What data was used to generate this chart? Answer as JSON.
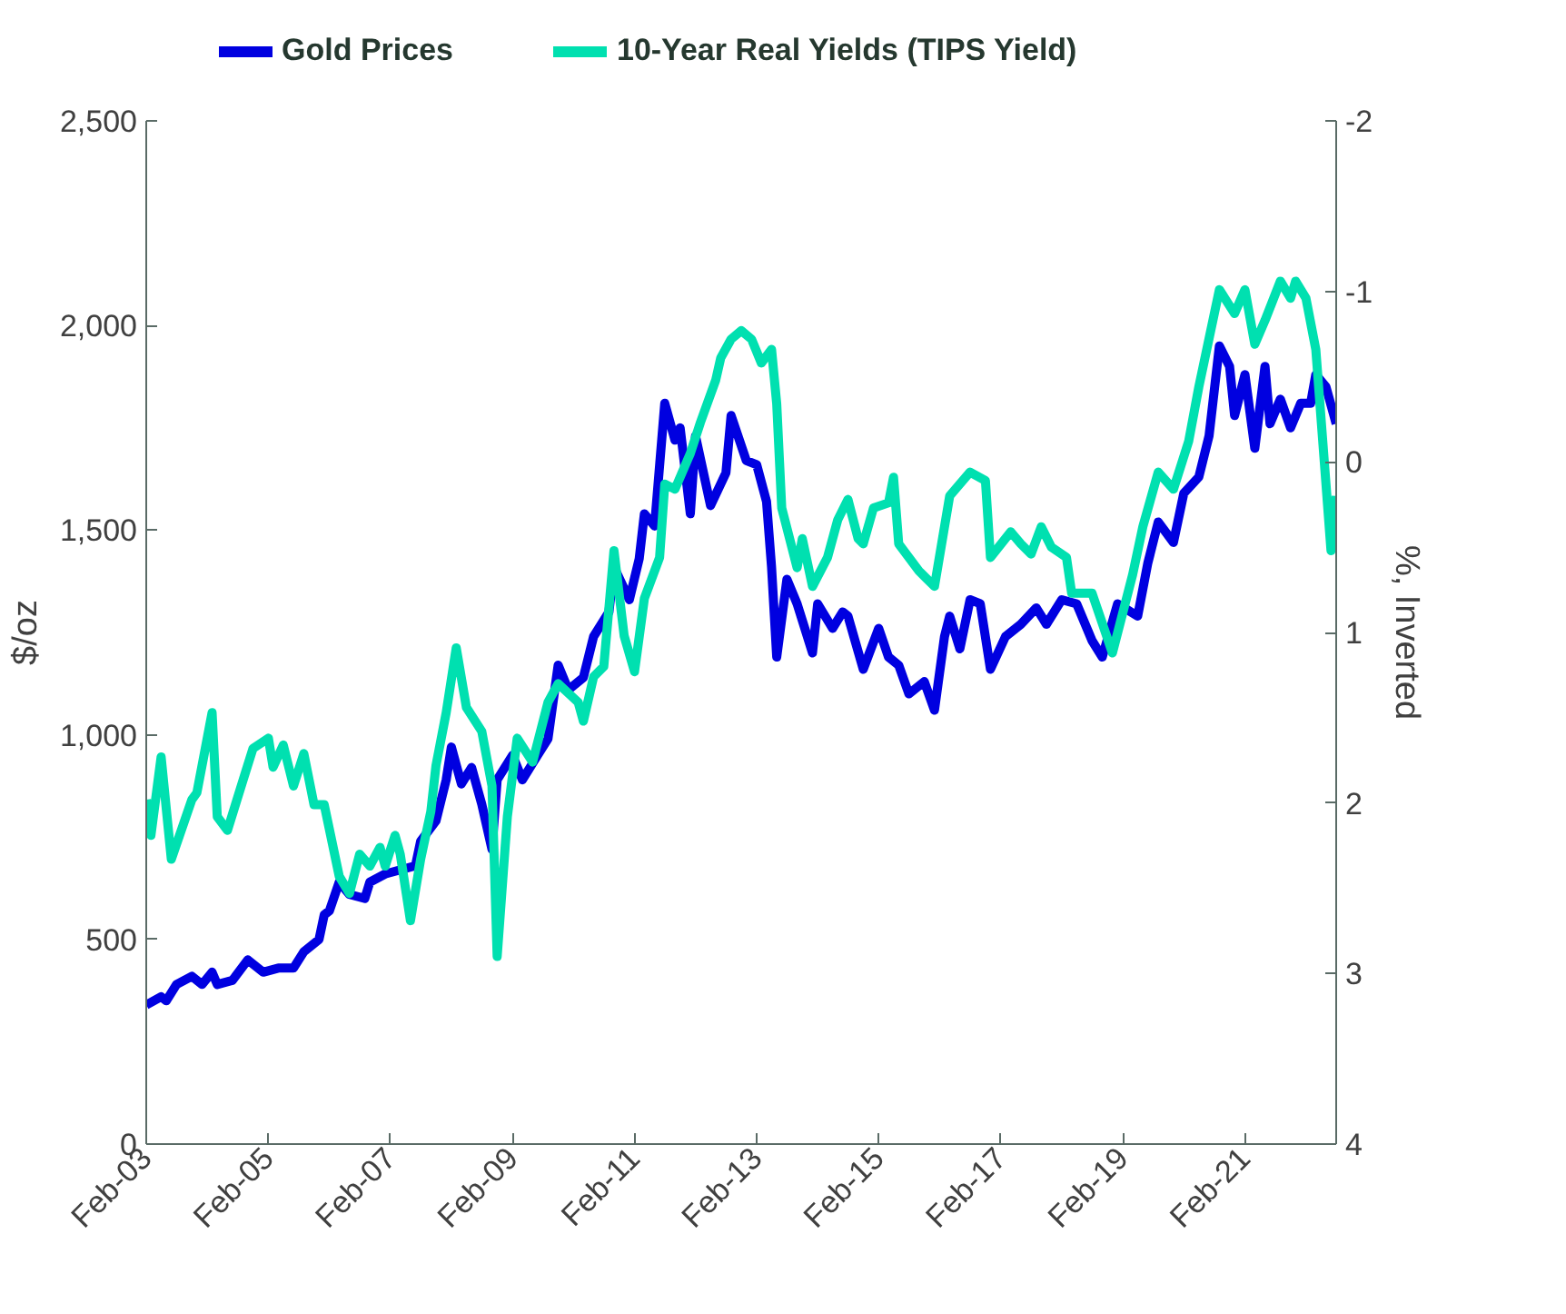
{
  "chart_data": {
    "type": "line",
    "ylabel": "$/oz",
    "y2label": "%, Inverted",
    "legend": "top",
    "grid": false,
    "xlim": [
      "2003-02",
      "2022-08"
    ],
    "xticks": [
      {
        "value": "2003-02",
        "label": "Feb-03"
      },
      {
        "value": "2005-02",
        "label": "Feb-05"
      },
      {
        "value": "2007-02",
        "label": "Feb-07"
      },
      {
        "value": "2009-02",
        "label": "Feb-09"
      },
      {
        "value": "2011-02",
        "label": "Feb-11"
      },
      {
        "value": "2013-02",
        "label": "Feb-13"
      },
      {
        "value": "2015-02",
        "label": "Feb-15"
      },
      {
        "value": "2017-02",
        "label": "Feb-17"
      },
      {
        "value": "2019-02",
        "label": "Feb-19"
      },
      {
        "value": "2021-02",
        "label": "Feb-21"
      }
    ],
    "ylim": [
      0,
      2500
    ],
    "yticks": [
      0,
      {
        "value": 500,
        "label": "500"
      },
      {
        "value": 1000,
        "label": "1,000"
      },
      {
        "value": 1500,
        "label": "1,500"
      },
      {
        "value": 2000,
        "label": "2,000"
      },
      {
        "value": 2500,
        "label": "2,500"
      }
    ],
    "y2lim": [
      4,
      -2
    ],
    "y2ticks": [
      4,
      3,
      2,
      1,
      0,
      -1,
      -2
    ],
    "series": [
      {
        "name": "Gold Prices",
        "color": "#0000e0",
        "x": [
          "2003-02",
          "2003-05",
          "2003-06",
          "2003-08",
          "2003-11",
          "2004-01",
          "2004-03",
          "2004-04",
          "2004-07",
          "2004-10",
          "2005-01",
          "2005-04",
          "2005-07",
          "2005-09",
          "2005-12",
          "2006-01",
          "2006-02",
          "2006-04",
          "2006-06",
          "2006-09",
          "2006-10",
          "2007-01",
          "2007-04",
          "2007-07",
          "2007-08",
          "2007-11",
          "2008-01",
          "2008-02",
          "2008-04",
          "2008-06",
          "2008-08",
          "2008-10",
          "2008-11",
          "2009-02",
          "2009-04",
          "2009-07",
          "2009-09",
          "2009-11",
          "2010-01",
          "2010-04",
          "2010-06",
          "2010-09",
          "2010-10",
          "2011-01",
          "2011-03",
          "2011-04",
          "2011-06",
          "2011-08",
          "2011-10",
          "2011-11",
          "2012-01",
          "2012-02",
          "2012-05",
          "2012-08",
          "2012-09",
          "2012-12",
          "2013-02",
          "2013-04",
          "2013-05",
          "2013-06",
          "2013-08",
          "2013-10",
          "2014-01",
          "2014-02",
          "2014-05",
          "2014-07",
          "2014-08",
          "2014-11",
          "2015-02",
          "2015-04",
          "2015-06",
          "2015-08",
          "2015-11",
          "2016-01",
          "2016-03",
          "2016-04",
          "2016-06",
          "2016-08",
          "2016-10",
          "2016-12",
          "2017-03",
          "2017-06",
          "2017-09",
          "2017-11",
          "2018-02",
          "2018-05",
          "2018-08",
          "2018-10",
          "2019-01",
          "2019-05",
          "2019-07",
          "2019-09",
          "2019-12",
          "2020-02",
          "2020-05",
          "2020-07",
          "2020-09",
          "2020-11",
          "2020-12",
          "2021-02",
          "2021-04",
          "2021-06",
          "2021-07",
          "2021-09",
          "2021-11",
          "2022-01",
          "2022-03",
          "2022-04",
          "2022-06",
          "2022-08"
        ],
        "values": [
          340,
          360,
          350,
          390,
          410,
          390,
          420,
          390,
          400,
          450,
          420,
          430,
          430,
          470,
          500,
          560,
          570,
          640,
          610,
          600,
          640,
          660,
          670,
          680,
          740,
          790,
          890,
          970,
          880,
          920,
          830,
          720,
          890,
          950,
          890,
          950,
          990,
          1170,
          1110,
          1140,
          1240,
          1300,
          1410,
          1330,
          1430,
          1540,
          1510,
          1810,
          1720,
          1750,
          1540,
          1730,
          1560,
          1640,
          1780,
          1670,
          1660,
          1570,
          1410,
          1190,
          1380,
          1320,
          1200,
          1320,
          1260,
          1300,
          1290,
          1160,
          1260,
          1190,
          1170,
          1100,
          1130,
          1060,
          1240,
          1290,
          1210,
          1330,
          1320,
          1160,
          1240,
          1270,
          1310,
          1270,
          1330,
          1320,
          1230,
          1190,
          1320,
          1290,
          1420,
          1520,
          1470,
          1590,
          1630,
          1730,
          1950,
          1900,
          1780,
          1880,
          1700,
          1900,
          1760,
          1820,
          1750,
          1810,
          1810,
          1880,
          1850,
          1760
        ]
      },
      {
        "name": "10-Year Real Yields (TIPS Yield)",
        "color": "#00e0b0",
        "axis": "y2",
        "x": [
          "2003-02",
          "2003-03",
          "2003-05",
          "2003-07",
          "2003-11",
          "2003-12",
          "2004-03",
          "2004-04",
          "2004-06",
          "2004-09",
          "2004-11",
          "2005-02",
          "2005-03",
          "2005-05",
          "2005-07",
          "2005-09",
          "2005-11",
          "2006-01",
          "2006-04",
          "2006-06",
          "2006-08",
          "2006-10",
          "2006-12",
          "2007-01",
          "2007-03",
          "2007-04",
          "2007-06",
          "2007-08",
          "2007-10",
          "2007-11",
          "2008-01",
          "2008-03",
          "2008-05",
          "2008-08",
          "2008-10",
          "2008-11",
          "2009-01",
          "2009-03",
          "2009-06",
          "2009-09",
          "2009-11",
          "2010-03",
          "2010-04",
          "2010-06",
          "2010-08",
          "2010-10",
          "2010-12",
          "2011-02",
          "2011-04",
          "2011-07",
          "2011-08",
          "2011-10",
          "2012-01",
          "2012-03",
          "2012-06",
          "2012-07",
          "2012-09",
          "2012-11",
          "2013-01",
          "2013-03",
          "2013-05",
          "2013-06",
          "2013-07",
          "2013-10",
          "2013-11",
          "2014-01",
          "2014-04",
          "2014-06",
          "2014-08",
          "2014-10",
          "2014-11",
          "2015-01",
          "2015-04",
          "2015-05",
          "2015-06",
          "2015-08",
          "2015-10",
          "2016-01",
          "2016-04",
          "2016-08",
          "2016-11",
          "2016-12",
          "2017-04",
          "2017-06",
          "2017-08",
          "2017-10",
          "2017-12",
          "2018-03",
          "2018-04",
          "2018-08",
          "2018-12",
          "2019-04",
          "2019-06",
          "2019-09",
          "2019-12",
          "2020-03",
          "2020-05",
          "2020-09",
          "2020-12",
          "2021-02",
          "2021-04",
          "2021-06",
          "2021-09",
          "2021-11",
          "2021-12",
          "2022-02",
          "2022-04",
          "2022-07",
          "2022-08"
        ],
        "values": [
          1.98,
          2.19,
          1.73,
          2.33,
          1.98,
          1.94,
          1.47,
          2.08,
          2.16,
          1.87,
          1.68,
          1.62,
          1.79,
          1.66,
          1.9,
          1.71,
          2.01,
          2.01,
          2.43,
          2.53,
          2.3,
          2.37,
          2.26,
          2.37,
          2.19,
          2.3,
          2.69,
          2.33,
          2.05,
          1.78,
          1.47,
          1.09,
          1.44,
          1.58,
          1.9,
          2.9,
          2.08,
          1.62,
          1.76,
          1.41,
          1.3,
          1.41,
          1.52,
          1.26,
          1.2,
          0.52,
          1.02,
          1.23,
          0.8,
          0.56,
          0.13,
          0.16,
          -0.05,
          -0.23,
          -0.48,
          -0.61,
          -0.72,
          -0.77,
          -0.72,
          -0.58,
          -0.66,
          -0.34,
          0.27,
          0.62,
          0.45,
          0.73,
          0.56,
          0.34,
          0.22,
          0.45,
          0.48,
          0.27,
          0.24,
          0.09,
          0.48,
          0.56,
          0.64,
          0.73,
          0.2,
          0.06,
          0.11,
          0.56,
          0.41,
          0.48,
          0.54,
          0.38,
          0.5,
          0.56,
          0.77,
          0.77,
          1.12,
          0.66,
          0.38,
          0.06,
          0.16,
          -0.12,
          -0.44,
          -1.01,
          -0.87,
          -1.01,
          -0.69,
          -0.83,
          -1.06,
          -0.96,
          -1.06,
          -0.96,
          -0.66,
          0.52,
          0.2
        ]
      }
    ]
  }
}
